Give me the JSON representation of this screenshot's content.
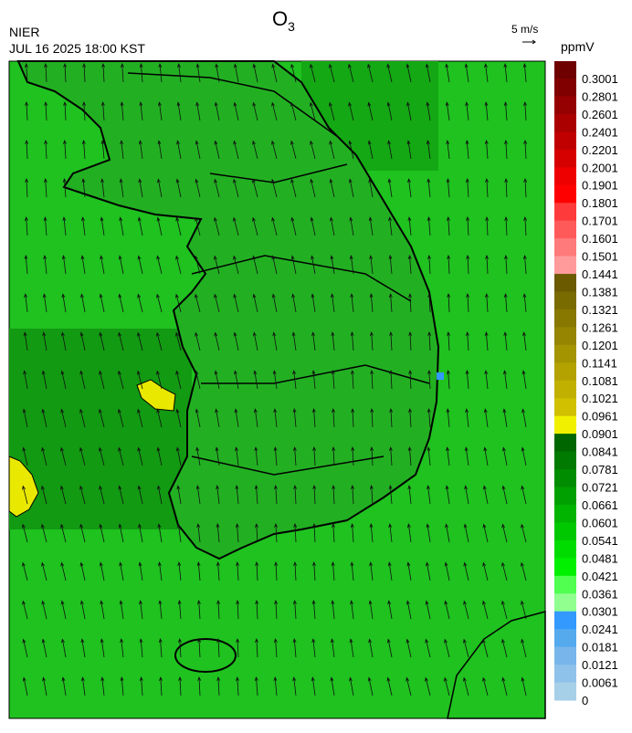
{
  "header": {
    "agency": "NIER",
    "timestamp": "JUL 16 2025 18:00 KST",
    "title": {
      "symbol": "O",
      "subscript": "3"
    },
    "wind_scale": "5 m/s"
  },
  "colorbar": {
    "unit": "ppmV",
    "labels": [
      0.3001,
      0.2801,
      0.2601,
      0.2401,
      0.2201,
      0.2001,
      0.1901,
      0.1801,
      0.1701,
      0.1601,
      0.1501,
      0.1441,
      0.1381,
      0.1321,
      0.1261,
      0.1201,
      0.1141,
      0.1081,
      0.1021,
      0.0961,
      0.0901,
      0.0841,
      0.0781,
      0.0721,
      0.0661,
      0.0601,
      0.0541,
      0.0481,
      0.0421,
      0.0361,
      0.0301,
      0.0241,
      0.0181,
      0.0121,
      0.0061,
      0
    ],
    "colors": [
      "#6e0000",
      "#800000",
      "#950000",
      "#aa0000",
      "#c00000",
      "#d60000",
      "#ee0000",
      "#ff0000",
      "#ff3a3a",
      "#ff5a5a",
      "#ff7a7a",
      "#ff9b9b",
      "#6b5a00",
      "#7a6b00",
      "#887800",
      "#968500",
      "#a49400",
      "#b3a200",
      "#c2b000",
      "#d0c000",
      "#f0f000",
      "#006600",
      "#007a00",
      "#008c00",
      "#00a000",
      "#00b400",
      "#00c800",
      "#00dc00",
      "#00f000",
      "#50ff50",
      "#90ff90",
      "#3399ff",
      "#55aaee",
      "#77b5ea",
      "#8fc2ea",
      "#a6cfe8"
    ]
  }
}
